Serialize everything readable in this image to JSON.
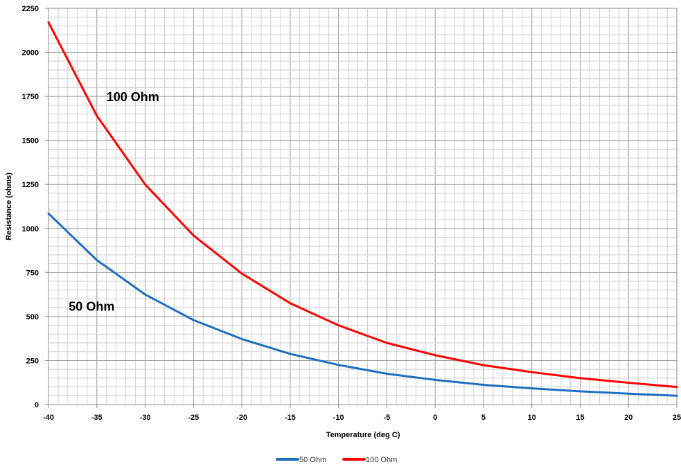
{
  "chart_data": {
    "type": "line",
    "title": "",
    "xlabel": "Temperature (deg C)",
    "ylabel": "Resistance (ohms)",
    "xlim": [
      -40,
      25
    ],
    "ylim": [
      0,
      2250
    ],
    "x_ticks": [
      -40,
      -35,
      -30,
      -25,
      -20,
      -15,
      -10,
      -5,
      0,
      5,
      10,
      15,
      20,
      25
    ],
    "y_ticks": [
      0,
      250,
      500,
      750,
      1000,
      1250,
      1500,
      1750,
      2000,
      2250
    ],
    "grid": true,
    "legend_position": "bottom",
    "x": [
      -40,
      -35,
      -30,
      -25,
      -20,
      -15,
      -10,
      -5,
      0,
      5,
      10,
      15,
      20,
      25
    ],
    "series": [
      {
        "name": "50 Ohm",
        "color": "#1f6fbf",
        "values": [
          1085,
          820,
          625,
          480,
          372,
          288,
          225,
          175,
          140,
          112,
          92,
          75,
          62,
          50
        ]
      },
      {
        "name": "100 Ohm",
        "color": "#ff0000",
        "values": [
          2170,
          1640,
          1250,
          960,
          744,
          576,
          450,
          350,
          280,
          224,
          184,
          150,
          124,
          100
        ]
      }
    ],
    "annotations": [
      {
        "text": "100 Ohm",
        "x": -34,
        "y": 1750
      },
      {
        "text": "50 Ohm",
        "x": -37.9,
        "y": 560
      }
    ]
  }
}
